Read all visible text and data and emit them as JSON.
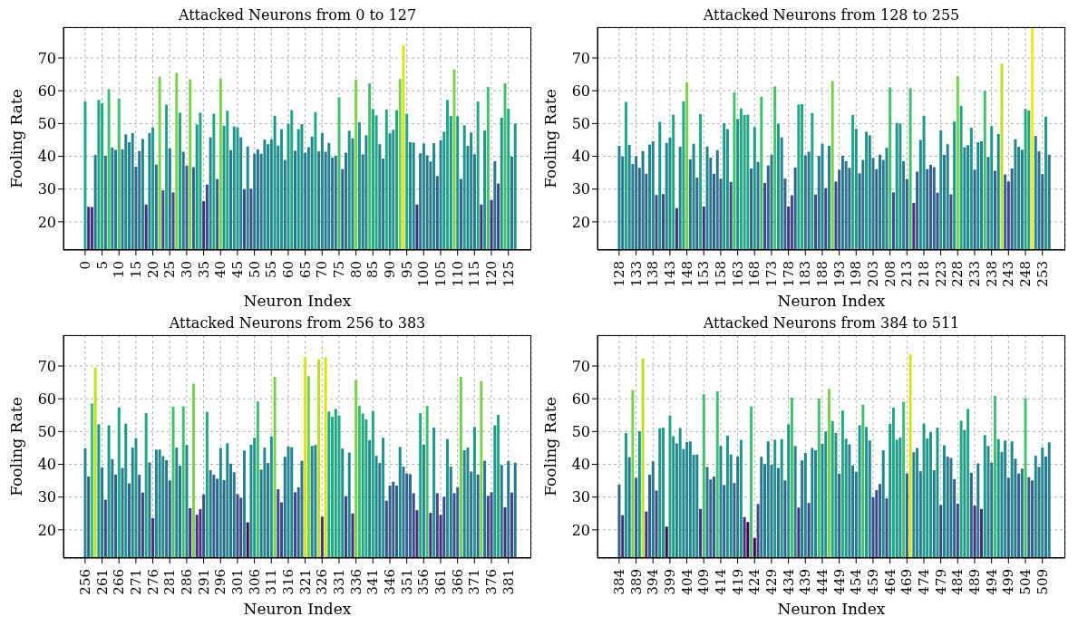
{
  "chart_data": [
    {
      "type": "bar",
      "title": "Attacked Neurons from 0 to 127",
      "xlabel": "Neuron Index",
      "ylabel": "Fooling Rate",
      "ylim": [
        11.4,
        79.4
      ],
      "yticks": [
        20,
        30,
        40,
        50,
        60,
        70
      ],
      "grid": true,
      "categories": [
        "0",
        null,
        null,
        null,
        null,
        "5",
        null,
        null,
        null,
        null,
        "10",
        null,
        null,
        null,
        null,
        "15",
        null,
        null,
        null,
        null,
        "20",
        null,
        null,
        null,
        null,
        "25",
        null,
        null,
        null,
        null,
        "30",
        null,
        null,
        null,
        null,
        "35",
        null,
        null,
        null,
        null,
        "40",
        null,
        null,
        null,
        null,
        "45",
        null,
        null,
        null,
        null,
        "50",
        null,
        null,
        null,
        null,
        "55",
        null,
        null,
        null,
        null,
        "60",
        null,
        null,
        null,
        null,
        "65",
        null,
        null,
        null,
        null,
        "70",
        null,
        null,
        null,
        null,
        "75",
        null,
        null,
        null,
        null,
        "80",
        null,
        null,
        null,
        null,
        "85",
        null,
        null,
        null,
        null,
        "90",
        null,
        null,
        null,
        null,
        "95",
        null,
        null,
        null,
        null,
        "100",
        null,
        null,
        null,
        null,
        "105",
        null,
        null,
        null,
        null,
        "110",
        null,
        null,
        null,
        null,
        "115",
        null,
        null,
        null,
        null,
        "120",
        null,
        null,
        null,
        null,
        "125",
        null,
        null
      ],
      "values": [
        56.8,
        24.6,
        24.5,
        40.4,
        57.2,
        56.2,
        40.2,
        60.5,
        42.7,
        42.0,
        57.6,
        42.1,
        46.7,
        44.3,
        47.1,
        36.8,
        41.6,
        45.3,
        25.3,
        47.1,
        48.8,
        37.5,
        64.3,
        29.6,
        55.8,
        42.4,
        29.0,
        65.5,
        53.3,
        41.4,
        37.1,
        63.5,
        36.7,
        49.7,
        53.3,
        26.3,
        31.4,
        45.8,
        53.0,
        33.1,
        63.6,
        49.3,
        53.9,
        41.9,
        49.1,
        48.8,
        45.8,
        29.9,
        43.0,
        30.1,
        40.8,
        42.1,
        40.8,
        45.1,
        43.7,
        45.2,
        52.4,
        43.3,
        48.3,
        38.9,
        49.9,
        54.1,
        41.7,
        48.3,
        49.8,
        41.1,
        42.8,
        46.0,
        53.5,
        41.5,
        47.1,
        41.4,
        44.1,
        39.6,
        40.2,
        58.0,
        36.1,
        41.1,
        47.8,
        45.5,
        63.4,
        50.4,
        40.6,
        46.4,
        62.3,
        54.4,
        52.5,
        43.7,
        39.3,
        54.3,
        47.0,
        48.1,
        54.1,
        63.6,
        73.9,
        53.0,
        44.3,
        44.2,
        25.3,
        40.9,
        43.9,
        40.3,
        38.4,
        44.0,
        34.0,
        44.9,
        47.5,
        57.2,
        52.3,
        66.5,
        52.2,
        33.1,
        49.5,
        43.2,
        47.3,
        40.6,
        56.7,
        25.3,
        47.9,
        61.2,
        26.7,
        38.5,
        31.7,
        51.8,
        62.3,
        54.5,
        39.9,
        50.0
      ],
      "colors": [
        "#22a884",
        "#46307e",
        "#46307e",
        "#2a788e",
        "#22a884",
        "#22a884",
        "#2a788e",
        "#44bf70",
        "#23888e",
        "#2a788e",
        "#44bf70",
        "#2a788e",
        "#23888e",
        "#23888e",
        "#23888e",
        "#33638d",
        "#2a788e",
        "#23888e",
        "#46307e",
        "#23888e",
        "#1f988b",
        "#2a788e",
        "#7ad151",
        "#3e4a89",
        "#22a884",
        "#2a788e",
        "#3e4a89",
        "#7ad151",
        "#22a884",
        "#2a788e",
        "#33638d",
        "#7ad151",
        "#33638d",
        "#1f988b",
        "#22a884",
        "#46307e",
        "#3e4a89",
        "#23888e",
        "#22a884",
        "#33638d",
        "#7ad151",
        "#1f988b",
        "#22a884",
        "#2a788e",
        "#1f988b",
        "#1f988b",
        "#23888e",
        "#3e4a89",
        "#23888e",
        "#3e4a89",
        "#2a788e",
        "#2a788e",
        "#2a788e",
        "#23888e",
        "#23888e",
        "#23888e",
        "#1f988b",
        "#23888e",
        "#1f988b",
        "#2a788e",
        "#1f988b",
        "#22a884",
        "#2a788e",
        "#1f988b",
        "#1f988b",
        "#2a788e",
        "#23888e",
        "#23888e",
        "#22a884",
        "#2a788e",
        "#23888e",
        "#2a788e",
        "#23888e",
        "#2a788e",
        "#2a788e",
        "#44bf70",
        "#33638d",
        "#2a788e",
        "#1f988b",
        "#23888e",
        "#7ad151",
        "#1f988b",
        "#2a788e",
        "#23888e",
        "#44bf70",
        "#22a884",
        "#22a884",
        "#23888e",
        "#2a788e",
        "#22a884",
        "#23888e",
        "#1f988b",
        "#22a884",
        "#7ad151",
        "#d8e219",
        "#22a884",
        "#23888e",
        "#23888e",
        "#46307e",
        "#2a788e",
        "#23888e",
        "#2a788e",
        "#2a788e",
        "#23888e",
        "#33638d",
        "#23888e",
        "#1f988b",
        "#22a884",
        "#1f988b",
        "#7ad151",
        "#1f988b",
        "#33638d",
        "#1f988b",
        "#23888e",
        "#23888e",
        "#2a788e",
        "#22a884",
        "#46307e",
        "#1f988b",
        "#44bf70",
        "#46307e",
        "#2a788e",
        "#3e4a89",
        "#1f988b",
        "#44bf70",
        "#22a884",
        "#2a788e",
        "#1f988b"
      ]
    },
    {
      "type": "bar",
      "title": "Attacked Neurons from 128 to 255",
      "xlabel": "Neuron Index",
      "ylabel": "Fooling Rate",
      "ylim": [
        11.4,
        79.4
      ],
      "yticks": [
        20,
        30,
        40,
        50,
        60,
        70
      ],
      "grid": true,
      "categories": [
        "128",
        null,
        null,
        null,
        null,
        "133",
        null,
        null,
        null,
        null,
        "138",
        null,
        null,
        null,
        null,
        "143",
        null,
        null,
        null,
        null,
        "148",
        null,
        null,
        null,
        null,
        "153",
        null,
        null,
        null,
        null,
        "158",
        null,
        null,
        null,
        null,
        "163",
        null,
        null,
        null,
        null,
        "168",
        null,
        null,
        null,
        null,
        "173",
        null,
        null,
        null,
        null,
        "178",
        null,
        null,
        null,
        null,
        "183",
        null,
        null,
        null,
        null,
        "188",
        null,
        null,
        null,
        null,
        "193",
        null,
        null,
        null,
        null,
        "198",
        null,
        null,
        null,
        null,
        "203",
        null,
        null,
        null,
        null,
        "208",
        null,
        null,
        null,
        null,
        "213",
        null,
        null,
        null,
        null,
        "218",
        null,
        null,
        null,
        null,
        "223",
        null,
        null,
        null,
        null,
        "228",
        null,
        null,
        null,
        null,
        "233",
        null,
        null,
        null,
        null,
        "238",
        null,
        null,
        null,
        null,
        "243",
        null,
        null,
        null,
        null,
        "248",
        null,
        null,
        null,
        null,
        "253",
        null,
        null
      ],
      "values": [
        43.2,
        40.0,
        56.6,
        43.5,
        37.7,
        40.0,
        36.5,
        41.6,
        34.7,
        43.6,
        44.6,
        28.2,
        50.5,
        28.5,
        44.1,
        45.7,
        52.7,
        24.2,
        42.9,
        56.8,
        62.5,
        39.1,
        43.8,
        33.5,
        52.9,
        24.7,
        43.0,
        39.6,
        34.7,
        41.9,
        33.2,
        50.1,
        48.3,
        32.2,
        59.5,
        51.4,
        54.6,
        52.6,
        52.7,
        36.3,
        48.9,
        38.3,
        58.2,
        31.9,
        37.2,
        40.5,
        61.3,
        49.9,
        45.8,
        33.2,
        24.7,
        28.1,
        36.6,
        55.8,
        55.9,
        40.3,
        41.4,
        53.2,
        28.3,
        40.1,
        43.8,
        30.3,
        43.2,
        63.0,
        32.3,
        35.9,
        40.2,
        38.5,
        36.5,
        52.6,
        48.4,
        34.8,
        38.9,
        47.5,
        46.4,
        39.5,
        36.1,
        40.5,
        38.9,
        42.6,
        61.0,
        29.0,
        50.2,
        50.0,
        38.5,
        33.1,
        60.8,
        25.8,
        35.3,
        45.0,
        52.3,
        36.1,
        37.4,
        36.7,
        28.9,
        48.0,
        40.4,
        43.7,
        28.4,
        50.6,
        64.5,
        55.4,
        42.8,
        43.4,
        48.7,
        35.9,
        44.3,
        44.6,
        60.0,
        39.8,
        49.2,
        35.6,
        46.8,
        68.3,
        34.5,
        32.3,
        36.3,
        45.2,
        42.9,
        42.0,
        54.5,
        54.0,
        79.4,
        46.2,
        41.5,
        34.6,
        52.1,
        40.5
      ],
      "colors": [
        "#23888e",
        "#2a788e",
        "#22a884",
        "#23888e",
        "#2a788e",
        "#2a788e",
        "#33638d",
        "#2a788e",
        "#33638d",
        "#23888e",
        "#23888e",
        "#3e4a89",
        "#1f988b",
        "#3e4a89",
        "#23888e",
        "#23888e",
        "#22a884",
        "#46307e",
        "#23888e",
        "#22a884",
        "#7ad151",
        "#2a788e",
        "#23888e",
        "#33638d",
        "#22a884",
        "#46307e",
        "#23888e",
        "#2a788e",
        "#33638d",
        "#2a788e",
        "#33638d",
        "#1f988b",
        "#1f988b",
        "#3e4a89",
        "#44bf70",
        "#1f988b",
        "#22a884",
        "#22a884",
        "#22a884",
        "#33638d",
        "#1f988b",
        "#2a788e",
        "#44bf70",
        "#3e4a89",
        "#33638d",
        "#2a788e",
        "#44bf70",
        "#1f988b",
        "#23888e",
        "#33638d",
        "#46307e",
        "#3e4a89",
        "#33638d",
        "#22a884",
        "#22a884",
        "#2a788e",
        "#2a788e",
        "#22a884",
        "#3e4a89",
        "#2a788e",
        "#23888e",
        "#3e4a89",
        "#23888e",
        "#7ad151",
        "#3e4a89",
        "#33638d",
        "#2a788e",
        "#2a788e",
        "#33638d",
        "#22a884",
        "#1f988b",
        "#33638d",
        "#2a788e",
        "#1f988b",
        "#23888e",
        "#2a788e",
        "#33638d",
        "#2a788e",
        "#2a788e",
        "#23888e",
        "#44bf70",
        "#3e4a89",
        "#1f988b",
        "#1f988b",
        "#2a788e",
        "#33638d",
        "#44bf70",
        "#46307e",
        "#33638d",
        "#23888e",
        "#1f988b",
        "#33638d",
        "#33638d",
        "#33638d",
        "#3e4a89",
        "#1f988b",
        "#2a788e",
        "#23888e",
        "#3e4a89",
        "#1f988b",
        "#7ad151",
        "#22a884",
        "#23888e",
        "#23888e",
        "#1f988b",
        "#33638d",
        "#23888e",
        "#23888e",
        "#44bf70",
        "#2a788e",
        "#1f988b",
        "#33638d",
        "#23888e",
        "#bddf26",
        "#33638d",
        "#3e4a89",
        "#33638d",
        "#23888e",
        "#23888e",
        "#2a788e",
        "#22a884",
        "#22a884",
        "#fde725",
        "#23888e",
        "#2a788e",
        "#33638d",
        "#1f988b",
        "#2a788e"
      ]
    },
    {
      "type": "bar",
      "title": "Attacked Neurons from 256 to 383",
      "xlabel": "Neuron Index",
      "ylabel": "Fooling Rate",
      "ylim": [
        11.4,
        79.4
      ],
      "yticks": [
        20,
        30,
        40,
        50,
        60,
        70
      ],
      "grid": true,
      "categories": [
        "256",
        null,
        null,
        null,
        null,
        "261",
        null,
        null,
        null,
        null,
        "266",
        null,
        null,
        null,
        null,
        "271",
        null,
        null,
        null,
        null,
        "276",
        null,
        null,
        null,
        null,
        "281",
        null,
        null,
        null,
        null,
        "286",
        null,
        null,
        null,
        null,
        "291",
        null,
        null,
        null,
        null,
        "296",
        null,
        null,
        null,
        null,
        "301",
        null,
        null,
        null,
        null,
        "306",
        null,
        null,
        null,
        null,
        "311",
        null,
        null,
        null,
        null,
        "316",
        null,
        null,
        null,
        null,
        "321",
        null,
        null,
        null,
        null,
        "326",
        null,
        null,
        null,
        null,
        "331",
        null,
        null,
        null,
        null,
        "336",
        null,
        null,
        null,
        null,
        "341",
        null,
        null,
        null,
        null,
        "346",
        null,
        null,
        null,
        null,
        "351",
        null,
        null,
        null,
        null,
        "356",
        null,
        null,
        null,
        null,
        "361",
        null,
        null,
        null,
        null,
        "366",
        null,
        null,
        null,
        null,
        "371",
        null,
        null,
        null,
        null,
        "376",
        null,
        null,
        null,
        null,
        "381",
        null,
        null
      ],
      "values": [
        44.9,
        36.3,
        58.6,
        69.5,
        52.2,
        39.0,
        29.2,
        51.9,
        41.6,
        36.9,
        57.3,
        38.9,
        52.4,
        34.2,
        45.1,
        48.0,
        36.8,
        31.4,
        55.6,
        40.6,
        23.6,
        44.5,
        44.5,
        42.5,
        41.3,
        35.1,
        57.6,
        45.1,
        39.6,
        57.7,
        45.9,
        26.6,
        64.6,
        24.6,
        26.3,
        30.8,
        56.0,
        38.2,
        36.8,
        35.6,
        45.0,
        35.2,
        46.4,
        40.2,
        37.6,
        30.9,
        29.8,
        44.2,
        22.3,
        46.0,
        48.1,
        59.2,
        38.4,
        45.1,
        40.4,
        48.5,
        66.7,
        32.4,
        28.4,
        42.3,
        45.4,
        45.2,
        31.5,
        33.0,
        41.1,
        72.8,
        66.9,
        45.6,
        45.9,
        72.1,
        24.0,
        72.7,
        56.1,
        54.5,
        56.9,
        54.9,
        44.8,
        30.3,
        43.6,
        25.0,
        65.7,
        57.9,
        55.5,
        53.7,
        47.4,
        56.3,
        42.6,
        40.4,
        48.1,
        28.9,
        33.5,
        34.7,
        33.5,
        45.3,
        39.3,
        37.2,
        37.0,
        31.2,
        26.0,
        55.6,
        46.0,
        57.8,
        25.2,
        51.2,
        31.2,
        24.6,
        30.1,
        47.7,
        39.3,
        31.2,
        33.0,
        66.7,
        44.3,
        45.1,
        37.8,
        51.4,
        36.9,
        65.4,
        41.1,
        30.4,
        31.5,
        51.9,
        55.1,
        39.8,
        26.9,
        41.0,
        31.4,
        40.5
      ],
      "colors": [
        "#23888e",
        "#33638d",
        "#44bf70",
        "#bddf26",
        "#1f988b",
        "#2a788e",
        "#3e4a89",
        "#1f988b",
        "#2a788e",
        "#33638d",
        "#22a884",
        "#2a788e",
        "#1f988b",
        "#33638d",
        "#23888e",
        "#1f988b",
        "#33638d",
        "#3e4a89",
        "#22a884",
        "#2a788e",
        "#46307e",
        "#23888e",
        "#23888e",
        "#23888e",
        "#2a788e",
        "#33638d",
        "#44bf70",
        "#23888e",
        "#2a788e",
        "#44bf70",
        "#23888e",
        "#46307e",
        "#7ad151",
        "#46307e",
        "#46307e",
        "#3e4a89",
        "#22a884",
        "#2a788e",
        "#33638d",
        "#33638d",
        "#23888e",
        "#33638d",
        "#23888e",
        "#2a788e",
        "#2a788e",
        "#3e4a89",
        "#3e4a89",
        "#23888e",
        "#440154",
        "#23888e",
        "#1f988b",
        "#44bf70",
        "#2a788e",
        "#23888e",
        "#2a788e",
        "#1f988b",
        "#7ad151",
        "#3e4a89",
        "#3e4a89",
        "#2a788e",
        "#23888e",
        "#23888e",
        "#3e4a89",
        "#33638d",
        "#2a788e",
        "#d8e219",
        "#7ad151",
        "#23888e",
        "#23888e",
        "#bddf26",
        "#46307e",
        "#d8e219",
        "#22a884",
        "#22a884",
        "#22a884",
        "#22a884",
        "#23888e",
        "#3e4a89",
        "#23888e",
        "#46307e",
        "#7ad151",
        "#44bf70",
        "#22a884",
        "#22a884",
        "#23888e",
        "#22a884",
        "#23888e",
        "#2a788e",
        "#1f988b",
        "#3e4a89",
        "#33638d",
        "#33638d",
        "#33638d",
        "#23888e",
        "#2a788e",
        "#33638d",
        "#33638d",
        "#3e4a89",
        "#46307e",
        "#22a884",
        "#23888e",
        "#44bf70",
        "#46307e",
        "#1f988b",
        "#3e4a89",
        "#46307e",
        "#3e4a89",
        "#1f988b",
        "#2a788e",
        "#3e4a89",
        "#33638d",
        "#7ad151",
        "#23888e",
        "#23888e",
        "#2a788e",
        "#1f988b",
        "#33638d",
        "#7ad151",
        "#2a788e",
        "#3e4a89",
        "#3e4a89",
        "#1f988b",
        "#22a884",
        "#2a788e",
        "#46307e",
        "#2a788e",
        "#3e4a89",
        "#2a788e"
      ]
    },
    {
      "type": "bar",
      "title": "Attacked Neurons from 384 to 511",
      "xlabel": "Neuron Index",
      "ylabel": "Fooling Rate",
      "ylim": [
        11.4,
        79.4
      ],
      "yticks": [
        20,
        30,
        40,
        50,
        60,
        70
      ],
      "grid": true,
      "categories": [
        "384",
        null,
        null,
        null,
        null,
        "389",
        null,
        null,
        null,
        null,
        "394",
        null,
        null,
        null,
        null,
        "399",
        null,
        null,
        null,
        null,
        "404",
        null,
        null,
        null,
        null,
        "409",
        null,
        null,
        null,
        null,
        "414",
        null,
        null,
        null,
        null,
        "419",
        null,
        null,
        null,
        null,
        "424",
        null,
        null,
        null,
        null,
        "429",
        null,
        null,
        null,
        null,
        "434",
        null,
        null,
        null,
        null,
        "439",
        null,
        null,
        null,
        null,
        "444",
        null,
        null,
        null,
        null,
        "449",
        null,
        null,
        null,
        null,
        "454",
        null,
        null,
        null,
        null,
        "459",
        null,
        null,
        null,
        null,
        "464",
        null,
        null,
        null,
        null,
        "469",
        null,
        null,
        null,
        null,
        "474",
        null,
        null,
        null,
        null,
        "479",
        null,
        null,
        null,
        null,
        "484",
        null,
        null,
        null,
        null,
        "489",
        null,
        null,
        null,
        null,
        "494",
        null,
        null,
        null,
        null,
        "499",
        null,
        null,
        null,
        null,
        "504",
        null,
        null,
        null,
        null,
        "509",
        null,
        null
      ],
      "values": [
        33.8,
        24.5,
        49.5,
        42.2,
        62.7,
        35.9,
        50.1,
        72.3,
        25.6,
        36.8,
        40.9,
        32.0,
        51.0,
        51.2,
        21.0,
        54.9,
        48.6,
        46.4,
        51.1,
        44.7,
        46.8,
        47.0,
        42.9,
        43.0,
        26.4,
        61.4,
        39.2,
        35.4,
        36.3,
        62.3,
        45.6,
        33.7,
        48.7,
        43.0,
        34.3,
        42.4,
        47.5,
        23.9,
        22.4,
        57.7,
        17.5,
        27.9,
        42.3,
        40.1,
        47.0,
        39.9,
        47.5,
        38.9,
        47.7,
        35.1,
        52.2,
        60.3,
        45.6,
        26.8,
        41.2,
        43.5,
        28.2,
        45.0,
        44.3,
        60.1,
        46.3,
        50.0,
        63.0,
        53.2,
        49.6,
        37.1,
        56.4,
        47.8,
        46.1,
        39.7,
        37.7,
        51.9,
        58.2,
        51.4,
        47.3,
        30.0,
        32.1,
        34.0,
        44.3,
        29.6,
        52.3,
        57.3,
        47.5,
        48.2,
        59.1,
        37.2,
        73.6,
        43.7,
        45.0,
        37.9,
        52.4,
        47.9,
        49.8,
        38.2,
        51.2,
        27.6,
        45.8,
        42.4,
        41.9,
        35.5,
        28.0,
        53.3,
        50.5,
        56.9,
        37.4,
        27.4,
        40.3,
        26.4,
        48.9,
        45.6,
        40.5,
        60.9,
        47.7,
        43.8,
        47.3,
        35.9,
        47.0,
        41.7,
        37.2,
        38.7,
        60.2,
        36.1,
        35.1,
        42.6,
        39.2,
        45.1,
        42.4,
        46.7
      ],
      "colors": [
        "#33638d",
        "#46307e",
        "#1f988b",
        "#2a788e",
        "#7ad151",
        "#33638d",
        "#1f988b",
        "#bddf26",
        "#46307e",
        "#33638d",
        "#2a788e",
        "#3e4a89",
        "#1f988b",
        "#1f988b",
        "#440154",
        "#22a884",
        "#1f988b",
        "#23888e",
        "#1f988b",
        "#23888e",
        "#23888e",
        "#23888e",
        "#23888e",
        "#23888e",
        "#46307e",
        "#44bf70",
        "#2a788e",
        "#33638d",
        "#33638d",
        "#44bf70",
        "#23888e",
        "#33638d",
        "#1f988b",
        "#23888e",
        "#33638d",
        "#2a788e",
        "#1f988b",
        "#46307e",
        "#440154",
        "#44bf70",
        "#440154",
        "#3e4a89",
        "#2a788e",
        "#2a788e",
        "#23888e",
        "#2a788e",
        "#1f988b",
        "#2a788e",
        "#1f988b",
        "#33638d",
        "#1f988b",
        "#44bf70",
        "#23888e",
        "#46307e",
        "#2a788e",
        "#23888e",
        "#3e4a89",
        "#23888e",
        "#23888e",
        "#44bf70",
        "#23888e",
        "#1f988b",
        "#7ad151",
        "#22a884",
        "#1f988b",
        "#33638d",
        "#22a884",
        "#1f988b",
        "#23888e",
        "#2a788e",
        "#2a788e",
        "#1f988b",
        "#44bf70",
        "#1f988b",
        "#23888e",
        "#3e4a89",
        "#3e4a89",
        "#33638d",
        "#23888e",
        "#3e4a89",
        "#1f988b",
        "#22a884",
        "#1f988b",
        "#1f988b",
        "#44bf70",
        "#33638d",
        "#d8e219",
        "#23888e",
        "#23888e",
        "#2a788e",
        "#1f988b",
        "#1f988b",
        "#1f988b",
        "#2a788e",
        "#1f988b",
        "#3e4a89",
        "#23888e",
        "#2a788e",
        "#2a788e",
        "#33638d",
        "#3e4a89",
        "#22a884",
        "#1f988b",
        "#22a884",
        "#33638d",
        "#46307e",
        "#2a788e",
        "#46307e",
        "#1f988b",
        "#23888e",
        "#2a788e",
        "#44bf70",
        "#1f988b",
        "#23888e",
        "#23888e",
        "#33638d",
        "#23888e",
        "#2a788e",
        "#33638d",
        "#2a788e",
        "#44bf70",
        "#33638d",
        "#33638d",
        "#23888e",
        "#2a788e",
        "#23888e",
        "#2a788e",
        "#23888e"
      ]
    }
  ]
}
